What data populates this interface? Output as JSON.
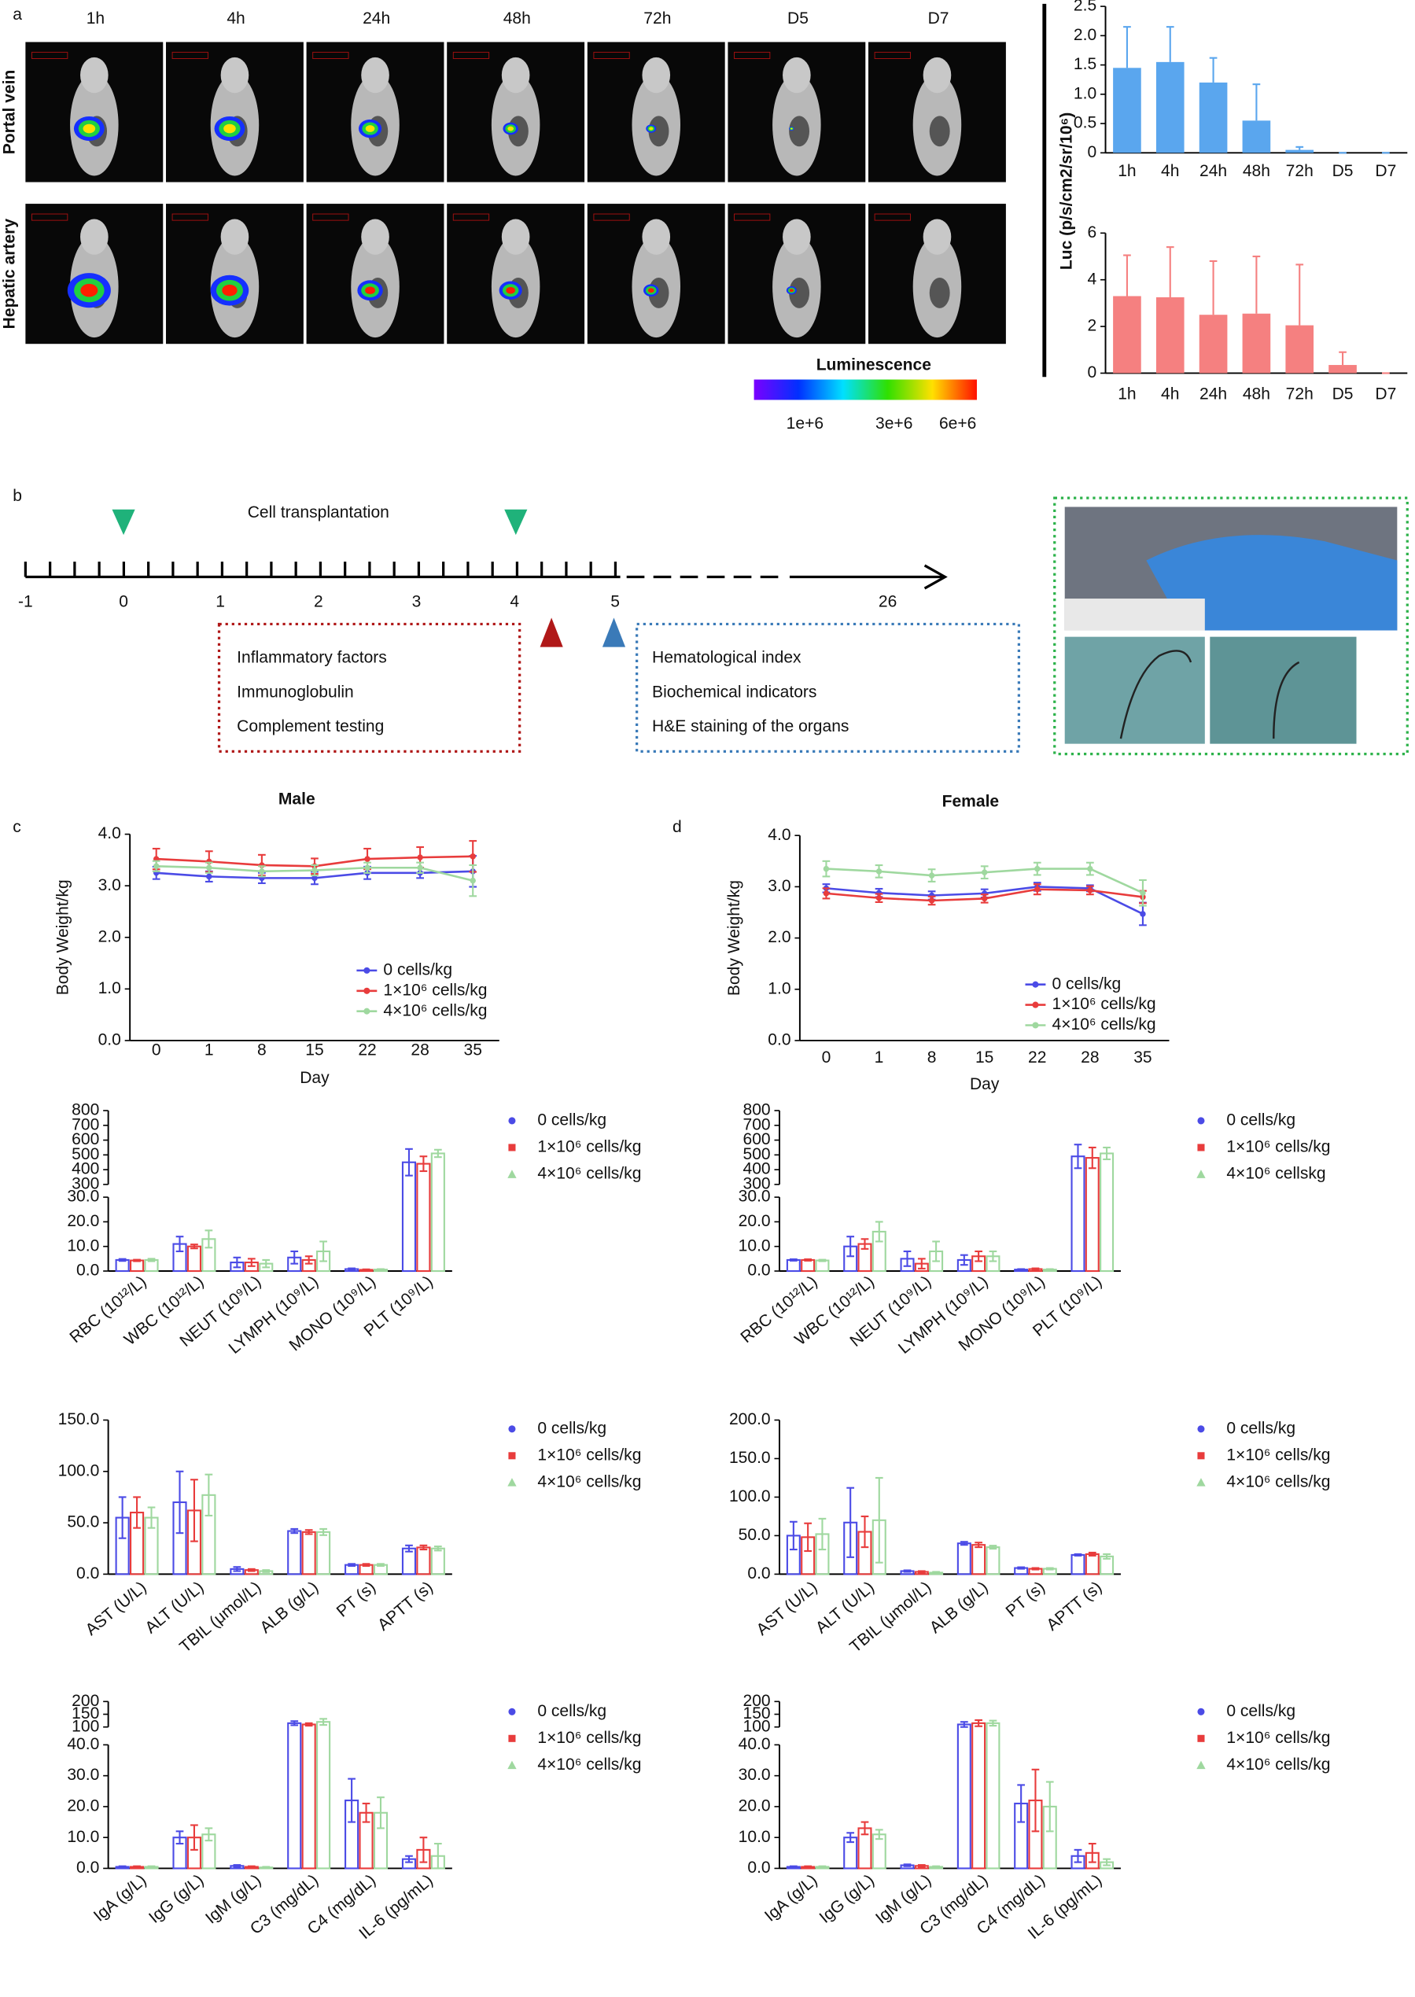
{
  "panel_labels": [
    "a",
    "b",
    "c",
    "d"
  ],
  "imaging": {
    "columns": [
      "1h",
      "4h",
      "24h",
      "48h",
      "72h",
      "D5",
      "D7"
    ],
    "rows": [
      "Portal vein",
      "Hepatic artery"
    ],
    "colorbar_title": "Luminescence",
    "colorbar_labels": [
      "1e+6",
      "3e+6",
      "6e+6"
    ]
  },
  "timeline": {
    "title": "Cell transplantation",
    "ticks": [
      "-1",
      "0",
      "1",
      "2",
      "3",
      "4",
      "5",
      "26"
    ],
    "red_box": [
      "Inflammatory factors",
      "Immunoglobulin",
      "Complement testing"
    ],
    "blue_box": [
      "Hematological index",
      "Biochemical indicators",
      "H&E staining of the organs"
    ]
  },
  "chart_data": [
    {
      "type": "bar",
      "ylabel": "Luc (p/s/cm2/sr/10⁶)",
      "categories": [
        "1h",
        "4h",
        "24h",
        "48h",
        "72h",
        "D5",
        "D7"
      ],
      "values": [
        1.45,
        1.55,
        1.2,
        0.55,
        0.05,
        0,
        0
      ],
      "errors": [
        0.7,
        0.6,
        0.42,
        0.62,
        0.05,
        0,
        0
      ],
      "color": "#5aa6ee",
      "ylim": [
        0,
        2.5
      ],
      "yticks": [
        0,
        0.5,
        {
          "value": 1,
          "label": "1.0"
        },
        1.5,
        {
          "value": 2,
          "label": "2.0"
        },
        2.5
      ]
    },
    {
      "type": "bar",
      "categories": [
        "1h",
        "4h",
        "24h",
        "48h",
        "72h",
        "D5",
        "D7"
      ],
      "values": [
        3.3,
        3.25,
        2.5,
        2.55,
        2.05,
        0.35,
        0
      ],
      "errors": [
        1.75,
        2.15,
        2.3,
        2.45,
        2.6,
        0.55,
        0
      ],
      "color": "#f58080",
      "ylim": [
        0,
        6
      ],
      "yticks": [
        0,
        2,
        4,
        6
      ]
    },
    {
      "type": "line",
      "title": "Male",
      "xlabel": "Day",
      "ylabel": "Body Weight/kg",
      "categories": [
        "0",
        "1",
        "8",
        "15",
        "22",
        "28",
        "35"
      ],
      "ylim": [
        0,
        4
      ],
      "yticks": [
        {
          "value": 0,
          "label": "0.0"
        },
        {
          "value": 1,
          "label": "1.0"
        },
        {
          "value": 2,
          "label": "2.0"
        },
        {
          "value": 3,
          "label": "3.0"
        },
        {
          "value": 4,
          "label": "4.0"
        }
      ],
      "series": [
        {
          "name": "0 cells/kg",
          "color": "#4b4be6",
          "values": [
            3.25,
            3.18,
            3.15,
            3.15,
            3.25,
            3.25,
            3.28
          ],
          "errors": [
            0.12,
            0.1,
            0.1,
            0.12,
            0.12,
            0.1,
            0.3
          ]
        },
        {
          "name": "1×10⁶ cells/kg",
          "color": "#e83c3c",
          "values": [
            3.52,
            3.47,
            3.4,
            3.38,
            3.52,
            3.55,
            3.57
          ],
          "errors": [
            0.2,
            0.2,
            0.2,
            0.15,
            0.2,
            0.2,
            0.3
          ]
        },
        {
          "name": "4×10⁶ cells/kg",
          "color": "#9fd89f",
          "values": [
            3.38,
            3.35,
            3.28,
            3.3,
            3.35,
            3.35,
            3.1
          ],
          "errors": [
            0.1,
            0.1,
            0.1,
            0.1,
            0.1,
            0.1,
            0.3
          ]
        }
      ]
    },
    {
      "type": "line",
      "title": "Female",
      "xlabel": "Day",
      "ylabel": "Body Weight/kg",
      "categories": [
        "0",
        "1",
        "8",
        "15",
        "22",
        "28",
        "35"
      ],
      "ylim": [
        0,
        4
      ],
      "yticks": [
        {
          "value": 0,
          "label": "0.0"
        },
        {
          "value": 1,
          "label": "1.0"
        },
        {
          "value": 2,
          "label": "2.0"
        },
        {
          "value": 3,
          "label": "3.0"
        },
        {
          "value": 4,
          "label": "4.0"
        }
      ],
      "series": [
        {
          "name": "0 cells/kg",
          "color": "#4b4be6",
          "values": [
            2.97,
            2.88,
            2.83,
            2.87,
            3.0,
            2.97,
            2.47
          ],
          "errors": [
            0.08,
            0.08,
            0.08,
            0.08,
            0.08,
            0.06,
            0.22
          ]
        },
        {
          "name": "1×10⁶ cells/kg",
          "color": "#e83c3c",
          "values": [
            2.87,
            2.78,
            2.73,
            2.77,
            2.95,
            2.93,
            2.8
          ],
          "errors": [
            0.1,
            0.08,
            0.08,
            0.08,
            0.1,
            0.08,
            0.12
          ]
        },
        {
          "name": "4×10⁶ cells/kg",
          "color": "#9fd89f",
          "values": [
            3.35,
            3.3,
            3.22,
            3.28,
            3.35,
            3.35,
            2.88
          ],
          "errors": [
            0.15,
            0.12,
            0.12,
            0.12,
            0.12,
            0.12,
            0.25
          ]
        }
      ]
    },
    {
      "type": "grouped_bar",
      "categories": [
        "RBC (10¹²/L)",
        "WBC (10¹²/L)",
        "NEUT (10⁹/L)",
        "LYMPH (10⁹/L)",
        "MONO (10⁹/L)",
        "PLT (10⁹/L)"
      ],
      "segments": [
        {
          "ylim": [
            0,
            30
          ],
          "yticks": [
            {
              "value": 0,
              "label": "0.0"
            },
            {
              "value": 10,
              "label": "10.0"
            },
            {
              "value": 20,
              "label": "20.0"
            },
            {
              "value": 30,
              "label": "30.0"
            }
          ]
        },
        {
          "ylim": [
            300,
            800
          ],
          "yticks": [
            300,
            400,
            500,
            600,
            700,
            800
          ]
        }
      ],
      "series": [
        {
          "name": "0 cells/kg",
          "color": "#4b4be6",
          "values": [
            4.5,
            11,
            3.5,
            5.5,
            0.8,
            450
          ],
          "errors": [
            0.4,
            3,
            2,
            2.5,
            0.3,
            90
          ]
        },
        {
          "name": "1×10⁶ cells/kg",
          "color": "#e83c3c",
          "values": [
            4.3,
            10,
            3.5,
            4.5,
            0.5,
            440
          ],
          "errors": [
            0.3,
            0.8,
            1.5,
            1.5,
            0.2,
            50
          ]
        },
        {
          "name": "4×10⁶ cells/kg",
          "color": "#9fd89f",
          "values": [
            4.5,
            13,
            3,
            8,
            0.6,
            510
          ],
          "errors": [
            0.5,
            3.5,
            1.5,
            4,
            0.2,
            25
          ]
        }
      ]
    },
    {
      "type": "grouped_bar",
      "categories": [
        "RBC (10¹²/L)",
        "WBC (10¹²/L)",
        "NEUT (10⁹/L)",
        "LYMPH (10⁹/L)",
        "MONO (10⁹/L)",
        "PLT (10⁹/L)"
      ],
      "segments": [
        {
          "ylim": [
            0,
            30
          ],
          "yticks": [
            {
              "value": 0,
              "label": "0.0"
            },
            {
              "value": 10,
              "label": "10.0"
            },
            {
              "value": 20,
              "label": "20.0"
            },
            {
              "value": 30,
              "label": "30.0"
            }
          ]
        },
        {
          "ylim": [
            300,
            800
          ],
          "yticks": [
            300,
            400,
            500,
            600,
            700,
            800
          ]
        }
      ],
      "series": [
        {
          "name": "0 cells/kg",
          "color": "#4b4be6",
          "values": [
            4.5,
            10,
            5,
            4.5,
            0.6,
            490
          ],
          "errors": [
            0.3,
            4,
            3,
            2,
            0.2,
            80
          ]
        },
        {
          "name": "1×10⁶ cells/kg",
          "color": "#e83c3c",
          "values": [
            4.5,
            11,
            3,
            6,
            0.8,
            480
          ],
          "errors": [
            0.3,
            2,
            2,
            2,
            0.3,
            70
          ]
        },
        {
          "name": "4×10⁶ cellskg",
          "color": "#9fd89f",
          "values": [
            4.3,
            16,
            8,
            6,
            0.6,
            510
          ],
          "errors": [
            0.3,
            4,
            4,
            2,
            0.2,
            40
          ]
        }
      ]
    },
    {
      "type": "grouped_bar",
      "categories": [
        "AST (U/L)",
        "ALT (U/L)",
        "TBIL (μmol/L)",
        "ALB (g/L)",
        "PT (s)",
        "APTT (s)"
      ],
      "ylim": [
        0,
        150
      ],
      "yticks": [
        {
          "value": 0,
          "label": "0.0"
        },
        {
          "value": 50,
          "label": "50.0"
        },
        {
          "value": 100,
          "label": "100.0"
        },
        {
          "value": 150,
          "label": "150.0"
        }
      ],
      "series": [
        {
          "name": "0 cells/kg",
          "color": "#4b4be6",
          "values": [
            55,
            70,
            5,
            42,
            9,
            25
          ],
          "errors": [
            20,
            30,
            2,
            2,
            1,
            3
          ]
        },
        {
          "name": "1×10⁶ cells/kg",
          "color": "#e83c3c",
          "values": [
            60,
            62,
            4,
            41,
            9,
            26
          ],
          "errors": [
            15,
            30,
            1,
            2,
            1,
            2
          ]
        },
        {
          "name": "4×10⁶ cells/kg",
          "color": "#9fd89f",
          "values": [
            55,
            77,
            3,
            41,
            9,
            25
          ],
          "errors": [
            10,
            20,
            1,
            3,
            1,
            2
          ]
        }
      ]
    },
    {
      "type": "grouped_bar",
      "categories": [
        "AST (U/L)",
        "ALT (U/L)",
        "TBIL (μmol/L)",
        "ALB (g/L)",
        "PT (s)",
        "APTT (s)"
      ],
      "ylim": [
        0,
        200
      ],
      "yticks": [
        {
          "value": 0,
          "label": "0.0"
        },
        {
          "value": 50,
          "label": "50.0"
        },
        {
          "value": 100,
          "label": "100.0"
        },
        {
          "value": 150,
          "label": "150.0"
        },
        {
          "value": 200,
          "label": "200.0"
        }
      ],
      "series": [
        {
          "name": "0 cells/kg",
          "color": "#4b4be6",
          "values": [
            50,
            67,
            4,
            40,
            8,
            25
          ],
          "errors": [
            18,
            45,
            1,
            2,
            1,
            1
          ]
        },
        {
          "name": "1×10⁶ cells/kg",
          "color": "#e83c3c",
          "values": [
            48,
            55,
            3,
            38,
            7,
            26
          ],
          "errors": [
            18,
            20,
            1,
            3,
            1,
            2
          ]
        },
        {
          "name": "4×10⁶ cells/kg",
          "color": "#9fd89f",
          "values": [
            52,
            70,
            2,
            35,
            7,
            23
          ],
          "errors": [
            20,
            55,
            1,
            2,
            1,
            3
          ]
        }
      ]
    },
    {
      "type": "grouped_bar",
      "categories": [
        "IgA (g/L)",
        "IgG (g/L)",
        "IgM (g/L)",
        "C3 (mg/dL)",
        "C4 (mg/dL)",
        "IL-6 (pg/mL)"
      ],
      "segments": [
        {
          "ylim": [
            0,
            40
          ],
          "yticks": [
            {
              "value": 0,
              "label": "0.0"
            },
            {
              "value": 10,
              "label": "10.0"
            },
            {
              "value": 20,
              "label": "20.0"
            },
            {
              "value": 30,
              "label": "30.0"
            },
            {
              "value": 40,
              "label": "40.0"
            }
          ]
        },
        {
          "ylim": [
            100,
            200
          ],
          "yticks": [
            100,
            150,
            200
          ]
        }
      ],
      "series": [
        {
          "name": "0 cells/kg",
          "color": "#4b4be6",
          "values": [
            0.5,
            10,
            0.8,
            115,
            22,
            3
          ],
          "errors": [
            0.2,
            2,
            0.3,
            8,
            7,
            1
          ]
        },
        {
          "name": "1×10⁶ cells/kg",
          "color": "#e83c3c",
          "values": [
            0.5,
            10,
            0.5,
            110,
            18,
            6
          ],
          "errors": [
            0.2,
            4,
            0.2,
            5,
            3,
            4
          ]
        },
        {
          "name": "4×10⁶ cells/kg",
          "color": "#9fd89f",
          "values": [
            0.5,
            11,
            0.3,
            120,
            18,
            4
          ],
          "errors": [
            0.2,
            2,
            0.2,
            12,
            5,
            4
          ]
        }
      ]
    },
    {
      "type": "grouped_bar",
      "categories": [
        "IgA (g/L)",
        "IgG (g/L)",
        "IgM (g/L)",
        "C3 (mg/dL)",
        "C4 (mg/dL)",
        "IL-6 (pg/mL)"
      ],
      "segments": [
        {
          "ylim": [
            0,
            40
          ],
          "yticks": [
            {
              "value": 0,
              "label": "0.0"
            },
            {
              "value": 10,
              "label": "10.0"
            },
            {
              "value": 20,
              "label": "20.0"
            },
            {
              "value": 30,
              "label": "30.0"
            },
            {
              "value": 40,
              "label": "40.0"
            }
          ]
        },
        {
          "ylim": [
            100,
            200
          ],
          "yticks": [
            100,
            150,
            200
          ]
        }
      ],
      "series": [
        {
          "name": "0 cells/kg",
          "color": "#4b4be6",
          "values": [
            0.5,
            10,
            1,
            110,
            21,
            4
          ],
          "errors": [
            0.2,
            1.5,
            0.3,
            10,
            6,
            2
          ]
        },
        {
          "name": "1×10⁶ cells/kg",
          "color": "#e83c3c",
          "values": [
            0.5,
            13,
            0.8,
            115,
            22,
            5
          ],
          "errors": [
            0.2,
            2,
            0.3,
            12,
            10,
            3
          ]
        },
        {
          "name": "4×10⁶ cells/kg",
          "color": "#9fd89f",
          "values": [
            0.5,
            11,
            0.5,
            115,
            20,
            2
          ],
          "errors": [
            0.2,
            1.5,
            0.2,
            10,
            8,
            1
          ]
        }
      ]
    }
  ]
}
